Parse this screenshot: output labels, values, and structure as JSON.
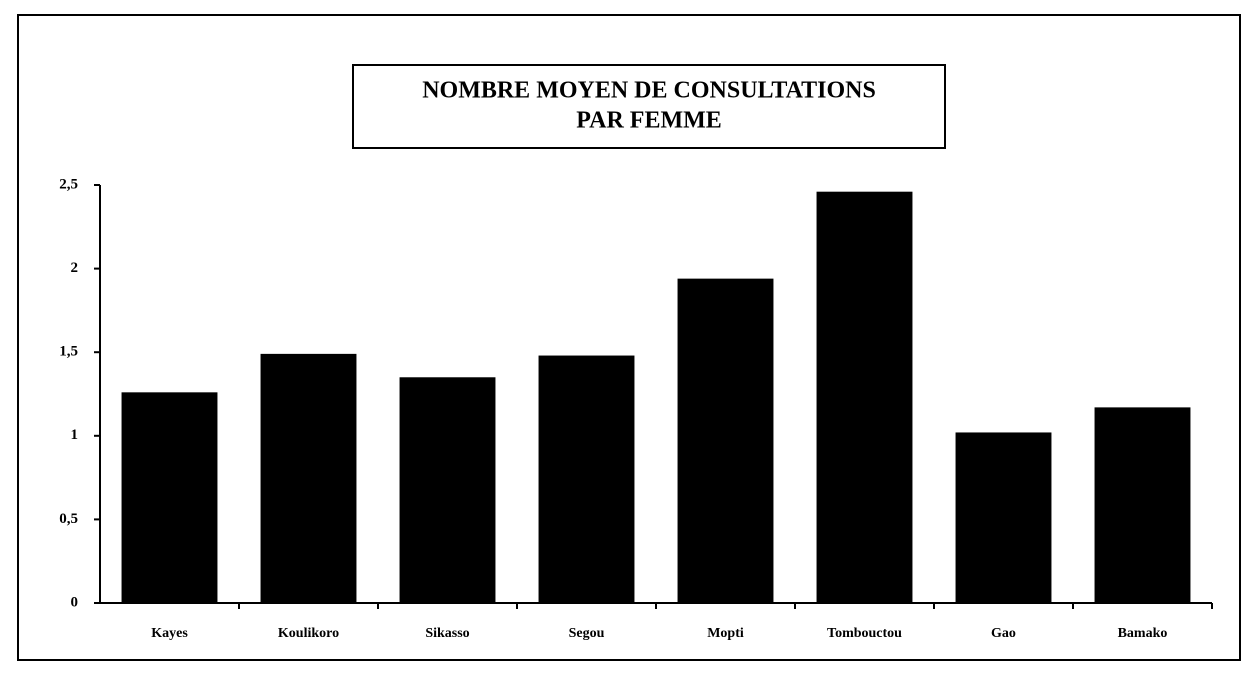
{
  "chart_data": {
    "type": "bar",
    "title": "NOMBRE MOYEN DE CONSULTATIONS",
    "subtitle": "PAR FEMME",
    "categories": [
      "Kayes",
      "Koulikoro",
      "Sikasso",
      "Segou",
      "Mopti",
      "Tombouctou",
      "Gao",
      "Bamako"
    ],
    "values": [
      1.26,
      1.49,
      1.35,
      1.48,
      1.94,
      2.46,
      1.02,
      1.17
    ],
    "color": "#000000",
    "ylim": [
      0,
      2.5
    ],
    "yticks": [
      0,
      {
        "value": 0.5,
        "label": "0,5"
      },
      1,
      {
        "value": 1.5,
        "label": "1,5"
      },
      2,
      {
        "value": 2.5,
        "label": "2,5"
      }
    ],
    "grid": false
  }
}
